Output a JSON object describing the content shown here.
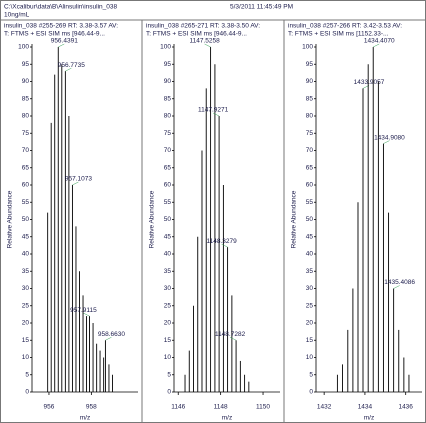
{
  "header": {
    "path": "C:\\Xcalibur\\data\\B\\Alinsulin\\insulin_038",
    "sample": "10ng/mL",
    "date": "5/3/2011 11:45:49 PM"
  },
  "chart_data": [
    {
      "type": "stick",
      "title": "insulin_038 #255-269   RT: 3.38-3.57   AV:",
      "subtitle": "T: FTMS + ESI SIM ms [946.44-9...",
      "xlabel": "m/z",
      "ylabel": "Relative Abundance",
      "color": "#000000",
      "x": [
        955.939,
        956.105,
        956.272,
        956.4391,
        956.606,
        956.7735,
        956.94,
        957.1073,
        957.274,
        957.44,
        957.607,
        957.774,
        957.9115,
        958.08,
        958.25,
        958.41,
        958.58,
        958.663,
        958.83,
        959.0
      ],
      "values": [
        52,
        78,
        92,
        100,
        95,
        93,
        80,
        60,
        48,
        35,
        28,
        22,
        22,
        20,
        14,
        12,
        10,
        15,
        8,
        5
      ],
      "x_labels": [
        null,
        null,
        null,
        "956.4391",
        null,
        "956.7735",
        null,
        "957.1073",
        null,
        null,
        null,
        null,
        "957.9115",
        null,
        null,
        null,
        null,
        "958.6630",
        null,
        null
      ],
      "xlim": [
        955.2,
        960.2
      ],
      "xticks": [
        956,
        958
      ],
      "ylim": [
        0,
        100
      ],
      "yticks": [
        0,
        5,
        10,
        15,
        20,
        25,
        30,
        35,
        40,
        45,
        50,
        55,
        60,
        65,
        70,
        75,
        80,
        85,
        90,
        95,
        100
      ]
    },
    {
      "type": "stick",
      "title": "insulin_038 #265-271   RT: 3.38-3.50   AV:",
      "subtitle": "T: FTMS + ESI SIM ms [946.44-9...",
      "xlabel": "m/z",
      "ylabel": "Relative Abundance",
      "color": "#000000",
      "x": [
        1146.32,
        1146.52,
        1146.72,
        1146.92,
        1147.12,
        1147.32,
        1147.5258,
        1147.73,
        1147.9271,
        1148.13,
        1148.3279,
        1148.53,
        1148.7282,
        1148.93,
        1149.13,
        1149.33
      ],
      "values": [
        5,
        12,
        25,
        45,
        70,
        88,
        100,
        95,
        80,
        60,
        42,
        28,
        15,
        9,
        5,
        3
      ],
      "x_labels": [
        null,
        null,
        null,
        null,
        null,
        null,
        "1147.5258",
        null,
        "1147.9271",
        null,
        "1148.3279",
        null,
        "1148.7282",
        null,
        null,
        null
      ],
      "xlim": [
        1145.8,
        1150.8
      ],
      "xticks": [
        1146,
        1148,
        1150
      ],
      "ylim": [
        0,
        100
      ],
      "yticks": [
        0,
        5,
        10,
        15,
        20,
        25,
        30,
        35,
        40,
        45,
        50,
        55,
        60,
        65,
        70,
        75,
        80,
        85,
        90,
        95,
        100
      ]
    },
    {
      "type": "stick",
      "title": "insulin_038 #257-266   RT: 3.42-3.53   AV:",
      "subtitle": "T: FTMS + ESI SIM ms [1152.33-...",
      "xlabel": "m/z",
      "ylabel": "Relative Abundance",
      "color": "#000000",
      "x": [
        1432.65,
        1432.9,
        1433.16,
        1433.41,
        1433.66,
        1433.9057,
        1434.16,
        1434.407,
        1434.66,
        1434.908,
        1435.16,
        1435.4086,
        1435.66,
        1435.91,
        1436.16
      ],
      "values": [
        5,
        8,
        18,
        30,
        55,
        88,
        95,
        100,
        90,
        72,
        52,
        30,
        18,
        10,
        5
      ],
      "x_labels": [
        null,
        null,
        null,
        null,
        null,
        "1433.9057",
        null,
        "1434.4070",
        null,
        "1434.9080",
        null,
        "1435.4086",
        null,
        null,
        null
      ],
      "xlim": [
        1431.6,
        1436.8
      ],
      "xticks": [
        1432,
        1434,
        1436
      ],
      "ylim": [
        0,
        100
      ],
      "yticks": [
        0,
        5,
        10,
        15,
        20,
        25,
        30,
        35,
        40,
        45,
        50,
        55,
        60,
        65,
        70,
        75,
        80,
        85,
        90,
        95,
        100
      ]
    }
  ]
}
